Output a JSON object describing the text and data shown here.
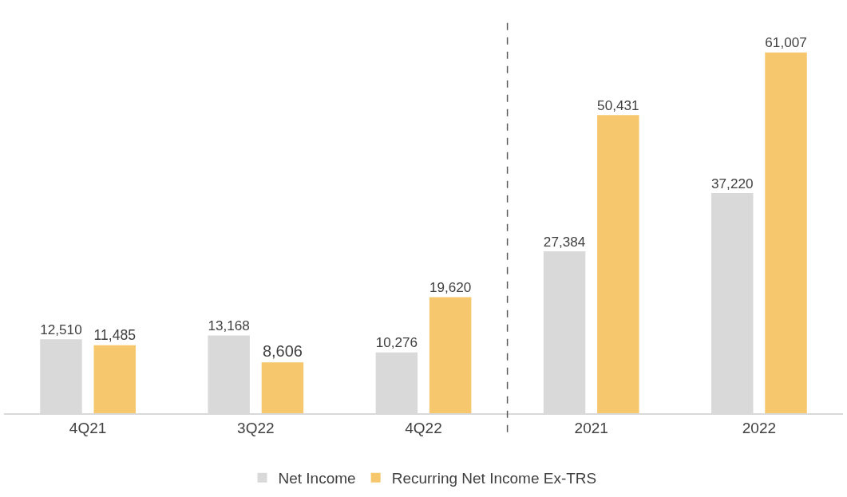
{
  "chart_data": {
    "type": "bar",
    "categories": [
      "4Q21",
      "3Q22",
      "4Q22",
      "2021",
      "2022"
    ],
    "series": [
      {
        "name": "Net Income",
        "color": "#d9d9d9",
        "values": [
          12510,
          13168,
          10276,
          27384,
          37220
        ],
        "value_labels": [
          "12,510",
          "13,168",
          "10,276",
          "27,384",
          "37,220"
        ]
      },
      {
        "name": "Recurring Net Income Ex-TRS",
        "color": "#f6c76c",
        "values": [
          11485,
          8606,
          19620,
          50431,
          61007
        ],
        "value_labels": [
          "11,485",
          "8,606",
          "19,620",
          "50,431",
          "61,007"
        ]
      }
    ],
    "legend": "bottom"
  }
}
